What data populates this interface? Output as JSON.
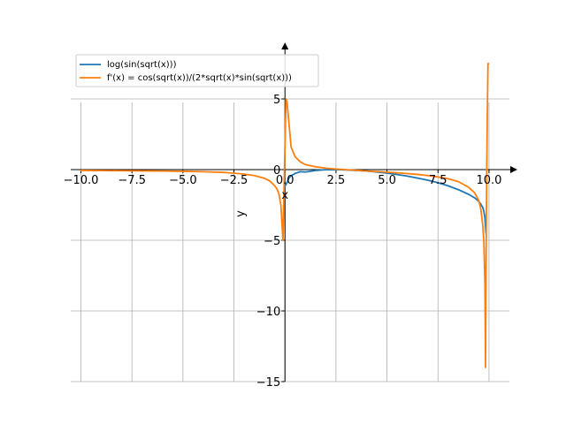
{
  "chart_data": {
    "type": "line",
    "title": "",
    "xlabel": "x",
    "ylabel": "y",
    "xlim": [
      -10.5,
      11.0
    ],
    "ylim": [
      -15.0,
      9.0
    ],
    "grid": true,
    "legend_position": "top-left",
    "x_ticks": [
      -10.0,
      -7.5,
      -5.0,
      -2.5,
      0.0,
      2.5,
      5.0,
      7.5,
      10.0
    ],
    "x_tick_labels": [
      "−10.0",
      "−7.5",
      "−5.0",
      "−2.5",
      "0.0",
      "2.5",
      "5.0",
      "7.5",
      "10.0"
    ],
    "y_ticks": [
      -15,
      -10,
      -5,
      0,
      5
    ],
    "y_tick_labels": [
      "−15",
      "−10",
      "−5",
      "0",
      "5"
    ],
    "series": [
      {
        "name": "log(sin(sqrt(x)))",
        "color": "#1f77b4",
        "x": [
          0.0,
          0.1,
          0.2,
          0.3,
          0.5,
          0.75,
          1.0,
          1.5,
          2.0,
          2.5,
          3.0,
          3.5,
          4.0,
          4.5,
          5.0,
          5.5,
          6.0,
          6.5,
          7.0,
          7.5,
          8.0,
          8.5,
          9.0,
          9.3,
          9.5,
          9.6,
          9.7,
          9.75,
          9.8,
          9.85
        ],
        "y": [
          -1.18,
          -0.92,
          -0.58,
          -0.44,
          -0.27,
          -0.15,
          -0.17,
          -0.06,
          -0.01,
          0.0,
          -0.02,
          -0.06,
          -0.1,
          -0.17,
          -0.25,
          -0.35,
          -0.46,
          -0.6,
          -0.75,
          -0.93,
          -1.15,
          -1.42,
          -1.75,
          -2.0,
          -2.25,
          -2.45,
          -2.7,
          -2.95,
          -3.4,
          -4.5
        ]
      },
      {
        "name": "f'(x) = cos(sqrt(x))/(2*sqrt(x)*sin(sqrt(x)))",
        "color": "#ff7f0e",
        "x": [
          -10.0,
          -9.0,
          -8.0,
          -7.0,
          -6.0,
          -5.0,
          -4.0,
          -3.0,
          -2.5,
          -2.0,
          -1.5,
          -1.0,
          -0.75,
          -0.5,
          -0.4,
          -0.3,
          -0.2,
          -0.1,
          0.05,
          0.1,
          0.2,
          0.3,
          0.5,
          0.75,
          1.0,
          1.5,
          2.0,
          2.5,
          3.0,
          3.5,
          4.0,
          4.5,
          5.0,
          5.5,
          6.0,
          6.5,
          7.0,
          7.5,
          8.0,
          8.5,
          9.0,
          9.3,
          9.5,
          9.6,
          9.7,
          9.75,
          9.8,
          9.83,
          9.86,
          9.89,
          9.92,
          9.95,
          9.98
        ],
        "y": [
          -0.06,
          -0.07,
          -0.08,
          -0.09,
          -0.1,
          -0.12,
          -0.15,
          -0.2,
          -0.25,
          -0.32,
          -0.42,
          -0.62,
          -0.8,
          -1.15,
          -1.35,
          -1.7,
          -2.5,
          -5.0,
          5.0,
          4.8,
          3.2,
          1.6,
          0.9,
          0.55,
          0.35,
          0.2,
          0.1,
          0.04,
          -0.01,
          -0.05,
          -0.1,
          -0.14,
          -0.18,
          -0.23,
          -0.28,
          -0.34,
          -0.42,
          -0.52,
          -0.65,
          -0.85,
          -1.25,
          -1.65,
          -2.2,
          -2.8,
          -4.0,
          -5.2,
          -8.0,
          -14.0,
          -6.0,
          0.0,
          4.0,
          7.5,
          7.5
        ]
      }
    ]
  }
}
